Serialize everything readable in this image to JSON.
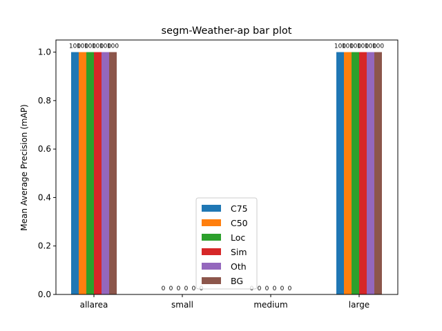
{
  "chart_data": {
    "type": "bar",
    "title": "segm-Weather-ap bar plot",
    "xlabel": "",
    "ylabel": "Mean Average Precision (mAP)",
    "ylim": [
      0,
      1.05
    ],
    "yticks": [
      "0.0",
      "0.2",
      "0.4",
      "0.6",
      "0.8",
      "1.0"
    ],
    "categories": [
      "allarea",
      "small",
      "medium",
      "large"
    ],
    "series": [
      {
        "name": "C75",
        "color": "#1f77b4",
        "values": [
          1.0,
          0,
          0,
          1.0
        ],
        "labels": [
          "100",
          "0",
          "0",
          "100"
        ]
      },
      {
        "name": "C50",
        "color": "#ff7f0e",
        "values": [
          1.0,
          0,
          0,
          1.0
        ],
        "labels": [
          "100",
          "0",
          "0",
          "100"
        ]
      },
      {
        "name": "Loc",
        "color": "#2ca02c",
        "values": [
          1.0,
          0,
          0,
          1.0
        ],
        "labels": [
          "100",
          "0",
          "0",
          "100"
        ]
      },
      {
        "name": "Sim",
        "color": "#d62728",
        "values": [
          1.0,
          0,
          0,
          1.0
        ],
        "labels": [
          "100",
          "0",
          "0",
          "100"
        ]
      },
      {
        "name": "Oth",
        "color": "#9467bd",
        "values": [
          1.0,
          0,
          0,
          1.0
        ],
        "labels": [
          "100",
          "0",
          "0",
          "100"
        ]
      },
      {
        "name": "BG",
        "color": "#8c564b",
        "values": [
          1.0,
          0,
          0,
          1.0
        ],
        "labels": [
          "100",
          "0",
          "0",
          "100"
        ]
      }
    ],
    "legend_position": "bottom-center",
    "grid": false
  }
}
